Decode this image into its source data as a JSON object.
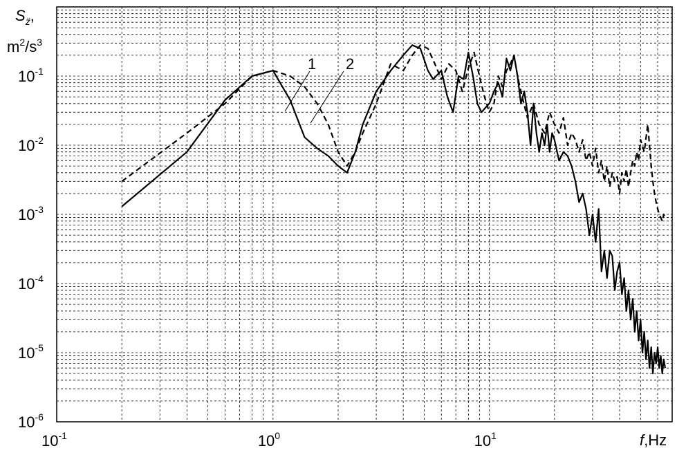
{
  "chart_data": {
    "type": "line",
    "xscale": "log",
    "yscale": "log",
    "xlim": [
      0.1,
      70
    ],
    "ylim": [
      1e-06,
      1
    ],
    "grid": true,
    "xlabel": {
      "var": "f",
      "unit": ",Hz"
    },
    "ylabel": {
      "var": "S",
      "sub": "z̈",
      "comma": ",",
      "unit_base": "m",
      "unit_exp": "2",
      "unit_mid": "/s",
      "unit_exp2": "3"
    },
    "x_ticks": [
      {
        "base": "10",
        "exp": "-1",
        "value": 0.1
      },
      {
        "base": "10",
        "exp": "0",
        "value": 1
      },
      {
        "base": "10",
        "exp": "1",
        "value": 10
      }
    ],
    "y_ticks": [
      {
        "base": "10",
        "exp": "-1",
        "value": 0.1
      },
      {
        "base": "10",
        "exp": "-2",
        "value": 0.01
      },
      {
        "base": "10",
        "exp": "-3",
        "value": 0.001
      },
      {
        "base": "10",
        "exp": "-4",
        "value": 0.0001
      },
      {
        "base": "10",
        "exp": "-5",
        "value": 1e-05
      },
      {
        "base": "10",
        "exp": "-6",
        "value": 1e-06
      }
    ],
    "series": [
      {
        "label": "1",
        "style": "solid",
        "color": "#000000",
        "x": [
          0.2,
          0.4,
          0.6,
          0.8,
          1.0,
          1.2,
          1.4,
          1.6,
          1.8,
          2.0,
          2.2,
          2.4,
          2.6,
          3.0,
          3.5,
          4.0,
          4.4,
          4.8,
          5.2,
          5.5,
          6.0,
          6.4,
          6.8,
          7.2,
          7.6,
          8.0,
          8.4,
          8.8,
          9.2,
          9.6,
          10.0,
          10.5,
          11.0,
          11.5,
          12.0,
          12.5,
          13.0,
          13.5,
          14.0,
          14.5,
          15.0,
          15.5,
          16.0,
          16.5,
          17.0,
          17.5,
          18.0,
          18.5,
          19.0,
          19.5,
          20.0,
          21.0,
          22.0,
          23.0,
          24.0,
          25.0,
          26.0,
          27.0,
          28.0,
          29.0,
          30.0,
          31.0,
          32.0,
          33.0,
          34.0,
          35.0,
          36.0,
          37.0,
          38.0,
          39.0,
          40.0,
          41.0,
          42.0,
          43.0,
          44.0,
          45.0,
          46.0,
          47.0,
          48.0,
          49.0,
          50.0,
          51.0,
          52.0,
          53.0,
          54.0,
          55.0,
          56.0,
          57.0,
          58.0,
          59.0,
          60.0,
          61.0,
          62.0,
          63.0,
          64.0,
          65.0
        ],
        "y": [
          0.0013,
          0.008,
          0.045,
          0.1,
          0.12,
          0.045,
          0.013,
          0.009,
          0.007,
          0.005,
          0.004,
          0.008,
          0.02,
          0.06,
          0.12,
          0.2,
          0.28,
          0.25,
          0.12,
          0.09,
          0.12,
          0.05,
          0.03,
          0.1,
          0.09,
          0.22,
          0.1,
          0.04,
          0.03,
          0.035,
          0.04,
          0.06,
          0.08,
          0.05,
          0.18,
          0.12,
          0.2,
          0.1,
          0.04,
          0.06,
          0.03,
          0.01,
          0.04,
          0.015,
          0.008,
          0.015,
          0.01,
          0.02,
          0.008,
          0.015,
          0.012,
          0.006,
          0.008,
          0.007,
          0.005,
          0.003,
          0.0015,
          0.002,
          0.0012,
          0.0005,
          0.001,
          0.0004,
          0.0012,
          0.00015,
          0.0003,
          0.00012,
          0.0003,
          0.00025,
          8e-05,
          0.00015,
          0.0002,
          7e-05,
          0.00012,
          4e-05,
          8e-05,
          3e-05,
          6e-05,
          2e-05,
          4e-05,
          1.5e-05,
          3e-05,
          1e-05,
          2e-05,
          8e-06,
          1.5e-05,
          6e-06,
          1.2e-05,
          5e-06,
          1e-05,
          7e-06,
          1.2e-05,
          6e-06,
          9e-06,
          5e-06,
          8e-06,
          6e-06
        ]
      },
      {
        "label": "2",
        "style": "dashed",
        "color": "#000000",
        "x": [
          0.2,
          0.4,
          0.6,
          0.8,
          1.0,
          1.2,
          1.4,
          1.6,
          1.8,
          2.0,
          2.2,
          2.4,
          2.6,
          3.0,
          3.5,
          4.0,
          4.4,
          4.8,
          5.2,
          5.6,
          6.0,
          6.5,
          7.0,
          7.5,
          8.0,
          8.5,
          9.0,
          9.5,
          10.0,
          10.5,
          11.0,
          11.5,
          12.0,
          12.5,
          13.0,
          13.5,
          14.0,
          15.0,
          16.0,
          17.0,
          18.0,
          19.0,
          20.0,
          21.0,
          22.0,
          23.0,
          24.0,
          25.0,
          26.0,
          27.0,
          28.0,
          29.0,
          30.0,
          31.0,
          32.0,
          33.0,
          34.0,
          35.0,
          36.0,
          37.0,
          38.0,
          39.0,
          40.0,
          41.0,
          42.0,
          43.0,
          44.0,
          45.0,
          46.0,
          47.0,
          48.0,
          49.0,
          50.0,
          52.0,
          54.0,
          55.0,
          56.0,
          57.0,
          58.0,
          59.0,
          60.0,
          61.0,
          62.0,
          63.0,
          64.0,
          65.0
        ],
        "y": [
          0.003,
          0.015,
          0.04,
          0.1,
          0.12,
          0.1,
          0.07,
          0.04,
          0.02,
          0.008,
          0.005,
          0.008,
          0.015,
          0.04,
          0.15,
          0.12,
          0.2,
          0.28,
          0.25,
          0.15,
          0.09,
          0.15,
          0.12,
          0.06,
          0.13,
          0.22,
          0.1,
          0.05,
          0.03,
          0.04,
          0.1,
          0.07,
          0.12,
          0.15,
          0.2,
          0.1,
          0.06,
          0.025,
          0.04,
          0.02,
          0.015,
          0.03,
          0.02,
          0.015,
          0.025,
          0.01,
          0.015,
          0.012,
          0.008,
          0.012,
          0.006,
          0.008,
          0.005,
          0.009,
          0.004,
          0.006,
          0.003,
          0.005,
          0.0025,
          0.004,
          0.003,
          0.0035,
          0.002,
          0.004,
          0.003,
          0.0045,
          0.0025,
          0.004,
          0.006,
          0.005,
          0.008,
          0.006,
          0.012,
          0.008,
          0.02,
          0.01,
          0.005,
          0.003,
          0.002,
          0.0015,
          0.0012,
          0.001,
          0.0009,
          0.0008,
          0.001,
          0.0009
        ]
      }
    ]
  }
}
